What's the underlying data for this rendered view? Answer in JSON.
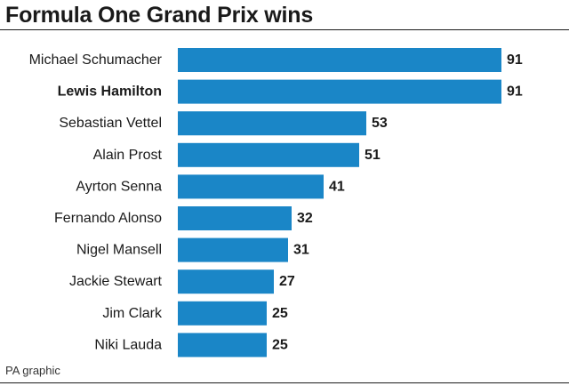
{
  "chart_data": {
    "type": "bar",
    "orientation": "horizontal",
    "title": "Formula One Grand Prix wins",
    "categories": [
      "Michael Schumacher",
      "Lewis Hamilton",
      "Sebastian Vettel",
      "Alain Prost",
      "Ayrton Senna",
      "Fernando Alonso",
      "Nigel Mansell",
      "Jackie Stewart",
      "Jim Clark",
      "Niki Lauda"
    ],
    "values": [
      91,
      91,
      53,
      51,
      41,
      32,
      31,
      27,
      25,
      25
    ],
    "highlighted_category": "Lewis Hamilton",
    "bar_color": "#1a86c7",
    "data_labels": "end",
    "grid": false,
    "legend": "none",
    "xlabel": "",
    "ylabel": ""
  },
  "source": "PA graphic"
}
